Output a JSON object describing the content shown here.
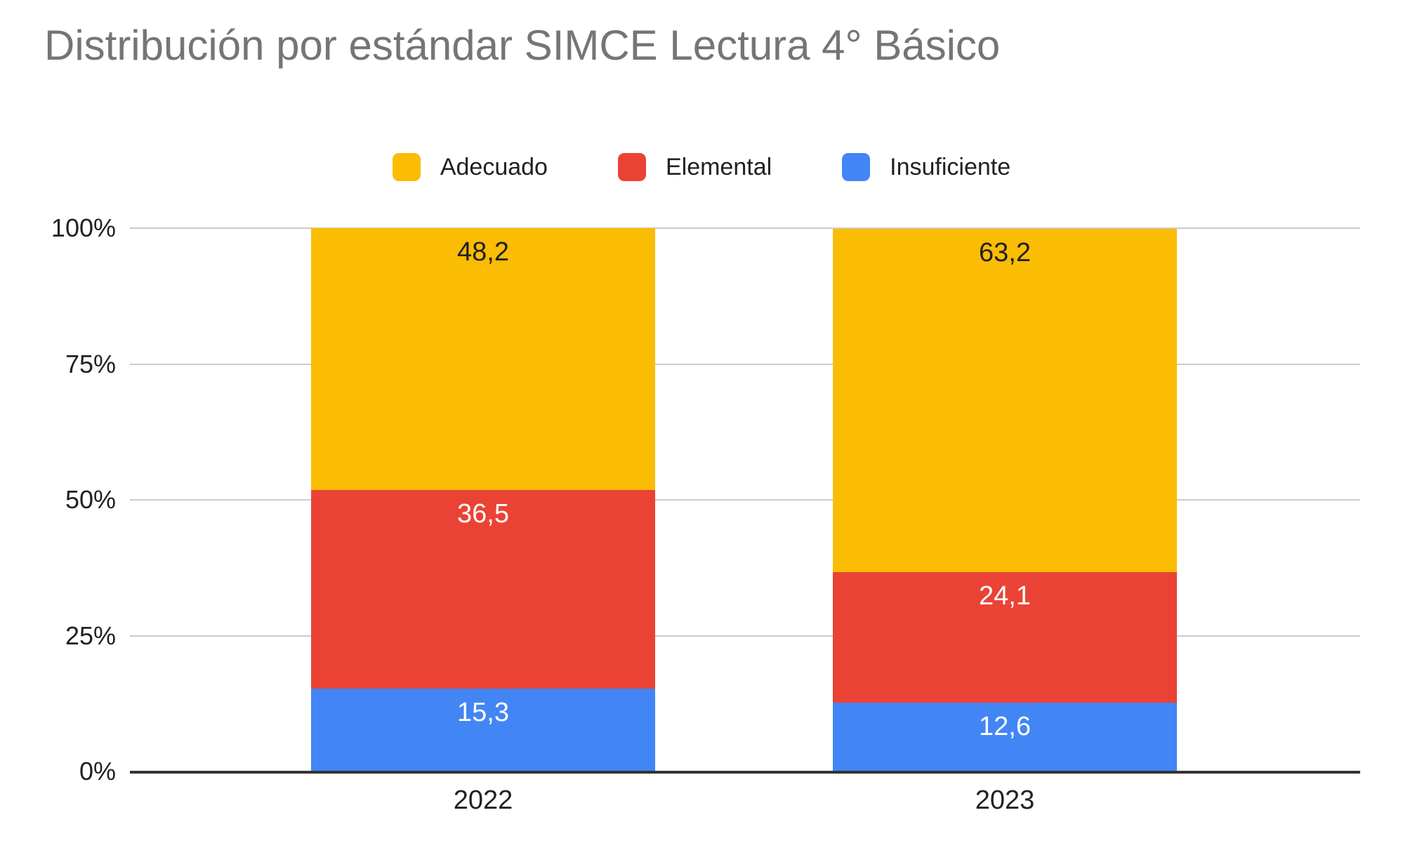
{
  "title": "Distribución por estándar SIMCE Lectura 4° Básico",
  "colors": {
    "title_text": "#757575",
    "axis_text": "#212121",
    "gridline": "#cccccc",
    "baseline": "#333333",
    "background": "#ffffff"
  },
  "chart_data": {
    "type": "bar",
    "subtype": "stacked-100-percent-column",
    "title": "Distribución por estándar SIMCE Lectura 4° Básico",
    "categories": [
      "2022",
      "2023"
    ],
    "series": [
      {
        "name": "Adecuado",
        "color": "#FBBC04",
        "label_color": "#212121",
        "values": [
          48.2,
          63.2
        ],
        "labels": [
          "48,2",
          "63,2"
        ]
      },
      {
        "name": "Elemental",
        "color": "#EA4335",
        "label_color": "#ffffff",
        "values": [
          36.5,
          24.1
        ],
        "labels": [
          "36,5",
          "24,1"
        ]
      },
      {
        "name": "Insuficiente",
        "color": "#4285F4",
        "label_color": "#ffffff",
        "values": [
          15.3,
          12.6
        ],
        "labels": [
          "15,3",
          "12,6"
        ]
      }
    ],
    "stack_order_bottom_to_top": [
      "Insuficiente",
      "Elemental",
      "Adecuado"
    ],
    "y_axis": {
      "ticks_bottom_to_top": [
        "0%",
        "25%",
        "50%",
        "75%",
        "100%"
      ],
      "min": 0,
      "max": 100
    },
    "xlabel": "",
    "ylabel": "",
    "grid": true,
    "legend_position": "top"
  }
}
